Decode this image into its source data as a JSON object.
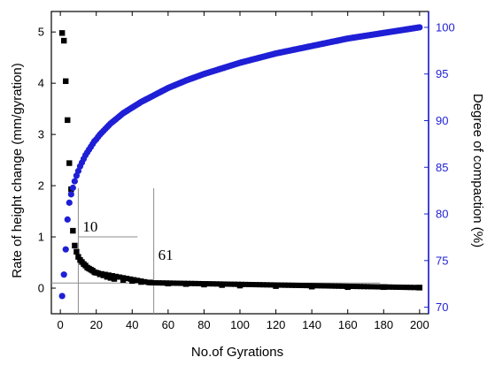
{
  "chart_data": {
    "type": "scatter",
    "xlabel": "No.of Gyrations",
    "ylabel_left": "Rate of height change (mm/gyration)",
    "ylabel_right": "Degree of compaction (%)",
    "xlim": [
      -5,
      205
    ],
    "ylim_left": [
      -0.5,
      5.4
    ],
    "ylim_right": [
      69.3,
      101.7
    ],
    "x_ticks": [
      0,
      20,
      40,
      60,
      80,
      100,
      120,
      140,
      160,
      180,
      200
    ],
    "y_left_ticks": [
      0,
      1,
      2,
      3,
      4,
      5
    ],
    "y_right_ticks": [
      70,
      75,
      80,
      85,
      90,
      95,
      100
    ],
    "colors": {
      "rate": "#000000",
      "compaction": "#1f1fd6",
      "guide": "#8c8c8c"
    },
    "series": [
      {
        "axis": "left",
        "marker": "square",
        "x": [
          1,
          2,
          3,
          4,
          5,
          6,
          7,
          8,
          9,
          10,
          11,
          12,
          13,
          14,
          15,
          16,
          17,
          18,
          19,
          20,
          22,
          24,
          26,
          28,
          30,
          35,
          40,
          45,
          50,
          60,
          70,
          80,
          90,
          100,
          120,
          140,
          160,
          180,
          200
        ],
        "values": [
          4.98,
          4.83,
          4.04,
          3.28,
          2.44,
          1.93,
          1.12,
          0.83,
          0.71,
          0.61,
          0.55,
          0.51,
          0.47,
          0.44,
          0.4,
          0.38,
          0.36,
          0.34,
          0.31,
          0.3,
          0.27,
          0.25,
          0.22,
          0.2,
          0.18,
          0.16,
          0.14,
          0.12,
          0.11,
          0.09,
          0.08,
          0.07,
          0.06,
          0.05,
          0.04,
          0.03,
          0.02,
          0.02,
          0.01
        ]
      },
      {
        "axis": "right",
        "marker": "circle",
        "x": [
          1,
          2,
          3,
          4,
          5,
          6,
          7,
          8,
          9,
          10,
          11,
          12,
          13,
          14,
          15,
          16,
          17,
          18,
          19,
          20,
          22,
          24,
          26,
          28,
          30,
          35,
          40,
          45,
          50,
          55,
          60,
          70,
          80,
          90,
          100,
          110,
          120,
          130,
          140,
          150,
          160,
          170,
          180,
          190,
          200
        ],
        "values": [
          71.2,
          73.5,
          76.2,
          79.4,
          81.2,
          82.1,
          82.8,
          83.5,
          84.1,
          84.6,
          85.1,
          85.5,
          85.9,
          86.3,
          86.6,
          86.9,
          87.2,
          87.5,
          87.8,
          88.0,
          88.5,
          88.9,
          89.3,
          89.7,
          90.0,
          90.8,
          91.4,
          92.0,
          92.5,
          93.0,
          93.5,
          94.3,
          95.0,
          95.6,
          96.2,
          96.7,
          97.2,
          97.6,
          98.0,
          98.4,
          98.8,
          99.1,
          99.4,
          99.7,
          100.0
        ]
      }
    ],
    "annotations": [
      {
        "text": "10",
        "x": 10,
        "y": 1.0,
        "x_end": 43
      },
      {
        "text": "61",
        "x": 52,
        "y": 0.1,
        "x_end": 178
      }
    ]
  }
}
